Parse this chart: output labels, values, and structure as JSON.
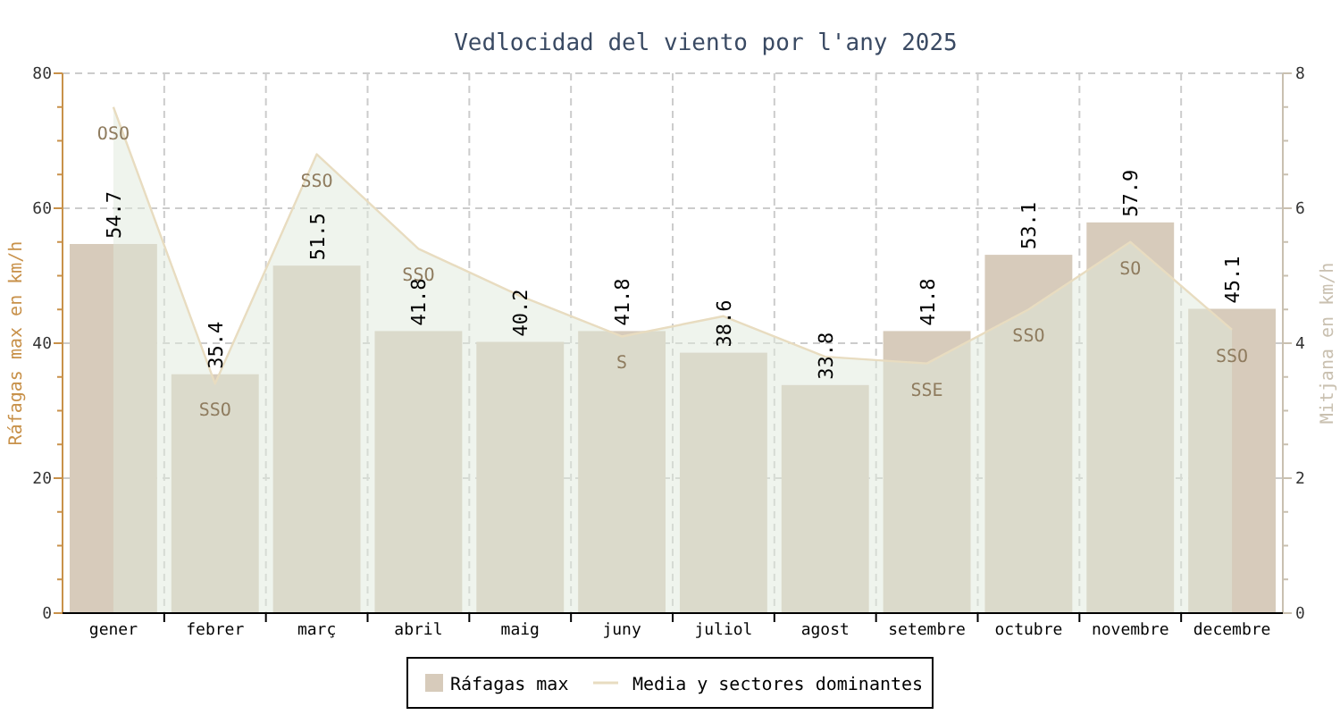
{
  "chart_data": {
    "type": "bar",
    "title": "Vedlocidad del viento por l'any 2025",
    "categories": [
      "gener",
      "febrer",
      "març",
      "abril",
      "maig",
      "juny",
      "juliol",
      "agost",
      "setembre",
      "octubre",
      "novembre",
      "decembre"
    ],
    "series": [
      {
        "name": "Ráfagas max",
        "color": "#d7cbbb",
        "values": [
          54.7,
          35.4,
          51.5,
          41.8,
          40.2,
          41.8,
          38.6,
          33.8,
          41.8,
          53.1,
          57.9,
          45.1
        ]
      },
      {
        "name": "Media y sectores dominantes",
        "type": "area",
        "axis": "y2",
        "color": "#e8dcc0",
        "values": [
          7.5,
          3.4,
          6.8,
          5.4,
          4.7,
          4.1,
          4.4,
          3.8,
          3.7,
          4.5,
          5.5,
          4.2
        ],
        "value_labels": [
          "OSO",
          "SSO",
          "SSO",
          "SSO",
          null,
          "S",
          null,
          null,
          "SSE",
          "SSO",
          "SO",
          "SSO"
        ]
      }
    ],
    "data_labels": true,
    "ylabel": "Ráfagas max en km/h",
    "y2label": "Mitjana en km/h",
    "ylim": [
      0,
      80
    ],
    "yticks": [
      0,
      {
        "value": 5,
        "label": null
      },
      {
        "value": 10,
        "label": null
      },
      {
        "value": 15,
        "label": null
      },
      20,
      {
        "value": 25,
        "label": null
      },
      {
        "value": 30,
        "label": null
      },
      {
        "value": 35,
        "label": null
      },
      40,
      {
        "value": 45,
        "label": null
      },
      {
        "value": 50,
        "label": null
      },
      {
        "value": 55,
        "label": null
      },
      60,
      {
        "value": 65,
        "label": null
      },
      {
        "value": 70,
        "label": null
      },
      {
        "value": 75,
        "label": null
      },
      80
    ],
    "y2lim": [
      0,
      8
    ],
    "y2ticks": [
      0,
      {
        "value": 0.5,
        "label": null
      },
      {
        "value": 1,
        "label": null
      },
      {
        "value": 1.5,
        "label": null
      },
      2,
      {
        "value": 2.5,
        "label": null
      },
      {
        "value": 3,
        "label": null
      },
      {
        "value": 3.5,
        "label": null
      },
      4,
      {
        "value": 4.5,
        "label": null
      },
      {
        "value": 5,
        "label": null
      },
      {
        "value": 5.5,
        "label": null
      },
      6,
      {
        "value": 6.5,
        "label": null
      },
      {
        "value": 7,
        "label": null
      },
      {
        "value": 7.5,
        "label": null
      },
      8
    ],
    "grid": true,
    "legend": "bottom"
  }
}
